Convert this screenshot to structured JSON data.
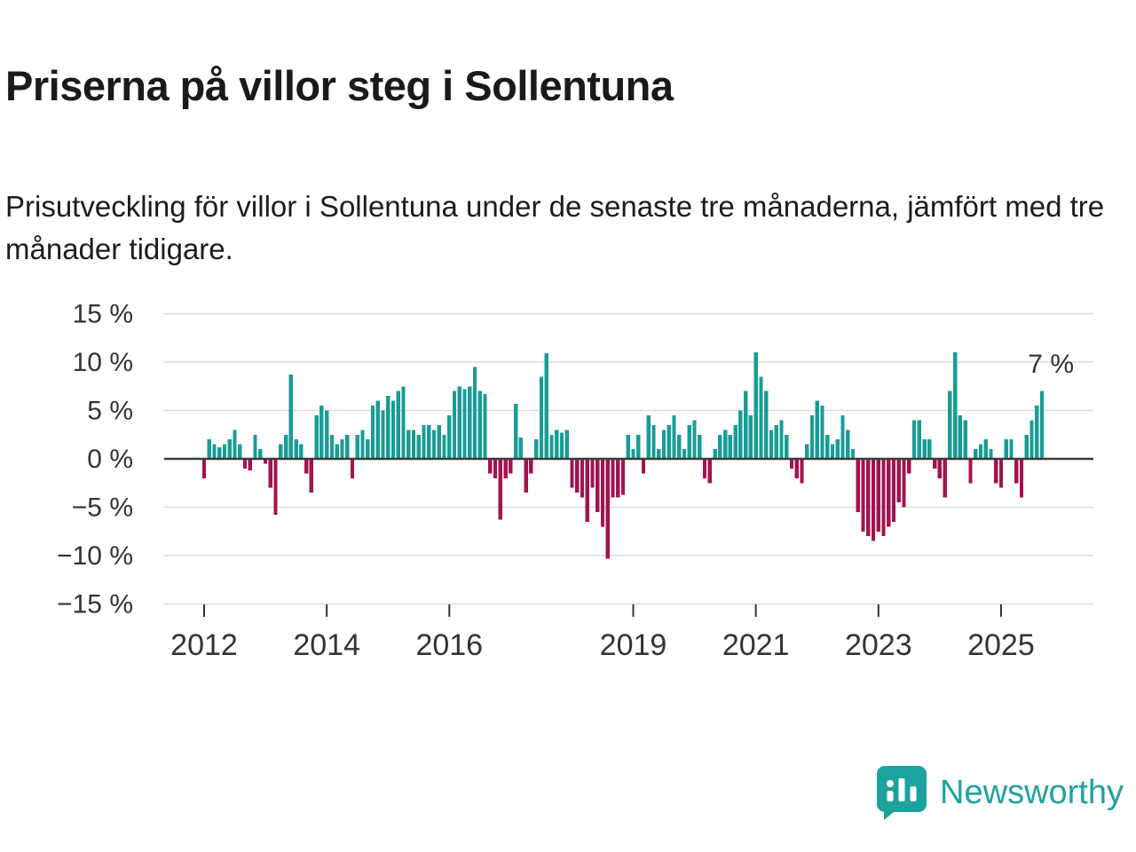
{
  "header": {
    "title": "Priserna på villor steg i Sollentuna",
    "subtitle": "Prisutveckling för villor i Sollentuna under de senaste tre månaderna, jämfört med tre månader tidigare."
  },
  "annotation": "7 %",
  "logo": {
    "text": "Newsworthy",
    "icon": "bar-chart-speech-bubble-icon",
    "color": "#1ca39e"
  },
  "chart_data": {
    "type": "bar",
    "title": "Prisutveckling för villor i Sollentuna",
    "unit": "%",
    "frequency": "monthly",
    "x_start": "2012-01",
    "x_end": "2025-09",
    "ylim": [
      -15,
      15
    ],
    "yticks": [
      15,
      10,
      5,
      0,
      -5,
      -10,
      -15
    ],
    "ytick_labels": [
      "15 %",
      "10 %",
      "5 %",
      "0 %",
      "−5 %",
      "−10 %",
      "−15 %"
    ],
    "xticks": [
      2012,
      2014,
      2016,
      2019,
      2021,
      2023,
      2025
    ],
    "grid": "horizontal",
    "positive_color": "#199c97",
    "negative_color": "#a3134e",
    "latest_value": 7,
    "values": [
      -2,
      2,
      1.5,
      1.2,
      1.5,
      2,
      3,
      1.5,
      -1,
      -1.2,
      2.5,
      1,
      -0.5,
      -3,
      -5.8,
      1.5,
      2.5,
      8.7,
      2,
      1.5,
      -1.5,
      -3.5,
      4.5,
      5.5,
      5,
      2.5,
      1.5,
      2,
      2.5,
      -2,
      2.5,
      3,
      2,
      5.5,
      6,
      5,
      6.5,
      6,
      7,
      7.5,
      3,
      3,
      2.5,
      3.5,
      3.5,
      3,
      3.5,
      2.5,
      4.5,
      7,
      7.5,
      7.2,
      7.5,
      9.5,
      7,
      6.7,
      -1.5,
      -2,
      -6.3,
      -2,
      -1.5,
      5.7,
      2.2,
      -3.5,
      -1.5,
      2,
      8.5,
      10.9,
      2.5,
      3,
      2.7,
      3,
      -3,
      -3.5,
      -4,
      -6.5,
      -3,
      -5.5,
      -7,
      -10.3,
      -4,
      -4,
      -3.7,
      2.5,
      1,
      2.5,
      -1.5,
      4.5,
      3.5,
      1,
      3,
      3.5,
      4.5,
      2.5,
      1,
      3.5,
      4,
      2.5,
      -2,
      -2.5,
      1,
      2.5,
      3,
      2.5,
      3.5,
      5,
      7,
      4.5,
      11,
      8.5,
      7,
      3,
      3.5,
      4,
      2.5,
      -1,
      -2,
      -2.5,
      1.5,
      4.5,
      6,
      5.5,
      2.5,
      1.5,
      2,
      4.5,
      3,
      1,
      -5.5,
      -7.5,
      -8,
      -8.5,
      -7.5,
      -8,
      -7,
      -6.5,
      -4.5,
      -5,
      -1.5,
      4,
      4,
      2,
      2,
      -1,
      -2,
      -4,
      7,
      11,
      4.5,
      4,
      -2.5,
      1,
      1.5,
      2,
      1,
      -2.5,
      -3,
      2,
      2,
      -2.5,
      -4,
      2.5,
      4,
      5.5,
      7
    ]
  }
}
